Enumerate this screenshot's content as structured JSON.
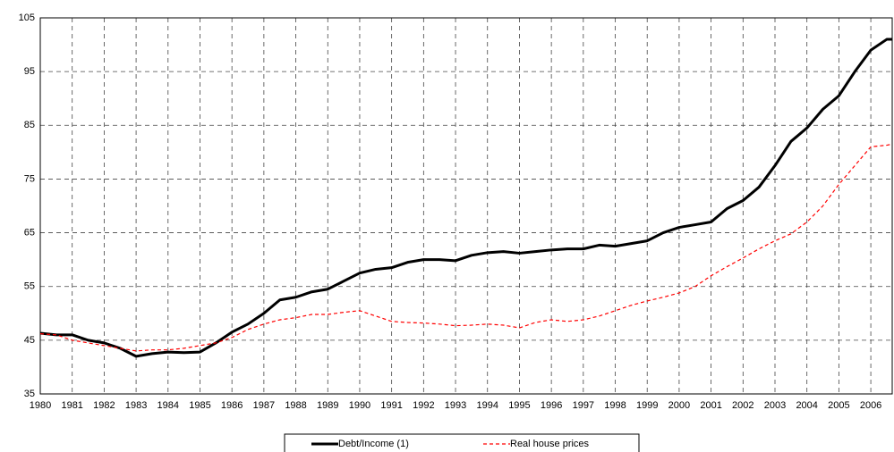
{
  "chart_data": {
    "type": "line",
    "x": [
      1980,
      1980.5,
      1981,
      1981.5,
      1982,
      1982.5,
      1983,
      1983.5,
      1984,
      1984.5,
      1985,
      1985.5,
      1986,
      1986.5,
      1987,
      1987.5,
      1988,
      1988.5,
      1989,
      1989.5,
      1990,
      1990.5,
      1991,
      1991.5,
      1992,
      1992.5,
      1993,
      1993.5,
      1994,
      1994.5,
      1995,
      1995.5,
      1996,
      1996.5,
      1997,
      1997.5,
      1998,
      1998.5,
      1999,
      1999.5,
      2000,
      2000.5,
      2001,
      2001.5,
      2002,
      2002.5,
      2003,
      2003.5,
      2004,
      2004.5,
      2005,
      2005.5,
      2006,
      2006.5,
      2006.67
    ],
    "series": [
      {
        "name": "Debt/Income (1)",
        "color": "#000000",
        "style": "solid",
        "values": [
          46.3,
          46,
          46,
          45,
          44.5,
          43.5,
          42,
          42.5,
          42.8,
          42.7,
          42.8,
          44.5,
          46.5,
          48,
          50,
          52.5,
          53,
          54,
          54.5,
          56,
          57.5,
          58.2,
          58.5,
          59.5,
          60,
          60,
          59.8,
          60.8,
          61.3,
          61.5,
          61.2,
          61.5,
          61.8,
          62,
          62,
          62.7,
          62.5,
          63,
          63.5,
          65,
          66,
          66.5,
          67,
          69.5,
          71,
          73.5,
          77.5,
          82,
          84.5,
          88,
          90.5,
          95,
          99,
          101,
          101
        ]
      },
      {
        "name": "Real house prices",
        "color": "#ff0000",
        "style": "dashed",
        "values": [
          46.2,
          46,
          45,
          44.5,
          44,
          43.5,
          43,
          43.2,
          43.2,
          43.5,
          44,
          44.5,
          45.5,
          47,
          48,
          48.8,
          49.2,
          49.8,
          49.8,
          50.2,
          50.5,
          49.5,
          48.5,
          48.3,
          48.2,
          48,
          47.7,
          47.8,
          48,
          47.8,
          47.3,
          48.3,
          48.8,
          48.5,
          48.8,
          49.5,
          50.5,
          51.5,
          52.3,
          53,
          53.8,
          55,
          57,
          58.7,
          60.3,
          62,
          63.5,
          64.8,
          67,
          70,
          74,
          77.5,
          81,
          81.3,
          81.5
        ]
      }
    ],
    "xlim": [
      1980,
      2006.67
    ],
    "xticks": [
      1980,
      1981,
      1982,
      1983,
      1984,
      1985,
      1986,
      1987,
      1988,
      1989,
      1990,
      1991,
      1992,
      1993,
      1994,
      1995,
      1996,
      1997,
      1998,
      1999,
      2000,
      2001,
      2002,
      2003,
      2004,
      2005,
      2006
    ],
    "ylim": [
      35,
      105
    ],
    "yticks": [
      35,
      45,
      55,
      65,
      75,
      85,
      95,
      105
    ],
    "grid": true,
    "legend": "bottom"
  }
}
